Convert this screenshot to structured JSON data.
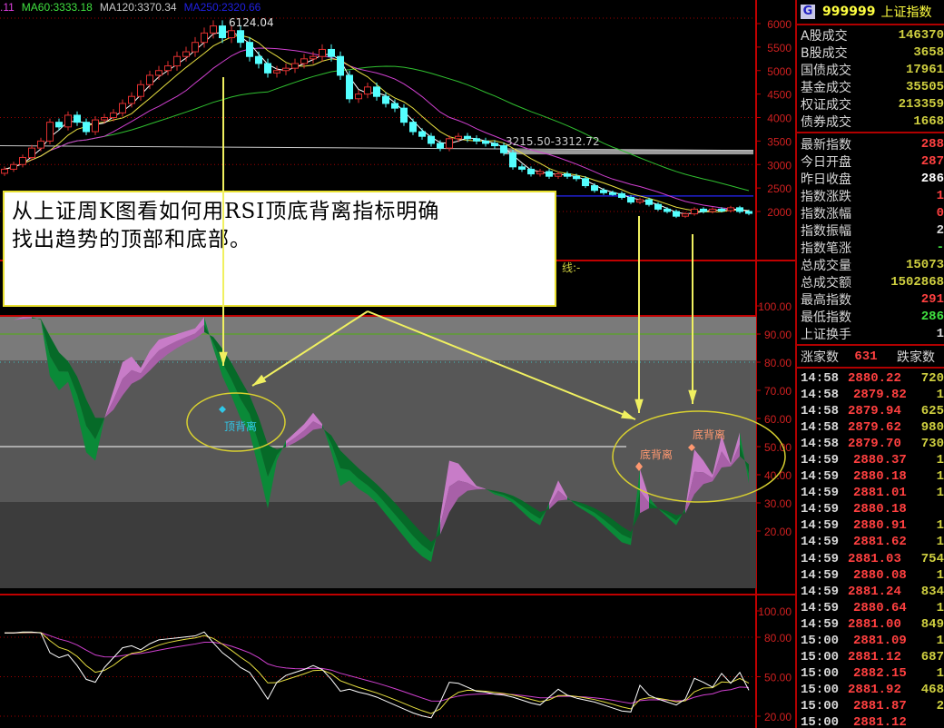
{
  "legend": {
    "items": [
      {
        "text": ".11",
        "color": "#e040e0"
      },
      {
        "text": "MA60:3333.18",
        "color": "#40e040"
      },
      {
        "text": "MA120:3370.34",
        "color": "#c8c8c8"
      },
      {
        "text": "MA250:2320.66",
        "color": "#2020e0"
      }
    ]
  },
  "annotations": {
    "peak_label": "6124.04",
    "range_label": "3215.50-3312.72",
    "indicator_label": "线:-",
    "top_divergence": "顶背离",
    "bottom_divergence_1": "底背离",
    "bottom_divergence_2": "底背离",
    "note_line1": "从上证周K图看如何用RSI顶底背离指标明确",
    "note_line2": "找出趋势的顶部和底部。"
  },
  "colors": {
    "up": "#e03030",
    "down": "#54ffff",
    "axis": "#c00000",
    "accent": "#ffff40",
    "pink": "#c87cc8",
    "green": "#0a8a38"
  },
  "chart_data": [
    {
      "type": "candlestick",
      "title": "",
      "price_axis": {
        "ticks": [
          "6000",
          "5500",
          "5000",
          "4500",
          "4000",
          "3500",
          "3000",
          "2500",
          "2000"
        ],
        "range": [
          1850,
          6200
        ]
      },
      "closes": [
        2900,
        3000,
        3150,
        3350,
        3500,
        3900,
        3800,
        4050,
        3900,
        3700,
        3950,
        4000,
        4100,
        4300,
        4450,
        4700,
        4900,
        5000,
        5100,
        5300,
        5400,
        5600,
        5800,
        5950,
        5700,
        5850,
        5600,
        5300,
        5150,
        4950,
        5000,
        5050,
        5150,
        5250,
        5300,
        5450,
        5300,
        4900,
        4400,
        4500,
        4650,
        4450,
        4300,
        4200,
        3900,
        3700,
        3600,
        3450,
        3350,
        3550,
        3600,
        3550,
        3500,
        3450,
        3400,
        3250,
        2950,
        2900,
        2800,
        2850,
        2750,
        2800,
        2750,
        2700,
        2550,
        2450,
        2400,
        2380,
        2300,
        2200,
        2250,
        2150,
        2050,
        2000,
        1900,
        1950,
        2050,
        2000,
        2050,
        2020,
        2080,
        2000,
        1960
      ],
      "peak": 6124.04,
      "range_band": [
        3215.5,
        3312.72
      ]
    },
    {
      "type": "area",
      "indicator": "RSI",
      "axis": {
        "ticks": [
          "100.00",
          "90.00",
          "80.00",
          "70.00",
          "60.00",
          "50.00",
          "40.00",
          "30.00",
          "20.00"
        ],
        "range": [
          0,
          100
        ]
      },
      "rsi": [
        95,
        95,
        96,
        96,
        95,
        75,
        70,
        73,
        62,
        48,
        45,
        60,
        70,
        80,
        82,
        78,
        84,
        88,
        89,
        90,
        91,
        92,
        96,
        85,
        75,
        68,
        60,
        55,
        42,
        28,
        45,
        52,
        55,
        58,
        62,
        58,
        48,
        36,
        38,
        35,
        33,
        30,
        26,
        22,
        18,
        14,
        11,
        9,
        25,
        45,
        44,
        40,
        36,
        35,
        33,
        32,
        30,
        27,
        24,
        22,
        30,
        38,
        32,
        29,
        27,
        25,
        22,
        19,
        16,
        15,
        42,
        32,
        28,
        25,
        22,
        28,
        49,
        45,
        40,
        54,
        44,
        55,
        37
      ]
    },
    {
      "type": "line",
      "axis": {
        "ticks": [
          "100.00",
          "80.00",
          "50.00",
          "20.00"
        ],
        "range": [
          10,
          100
        ]
      }
    }
  ],
  "info": {
    "code": "999999",
    "name": "上证指数",
    "badge": "G",
    "volume_rows": [
      {
        "label": "A股成交",
        "value": "146370"
      },
      {
        "label": "B股成交",
        "value": "3658"
      },
      {
        "label": "国债成交",
        "value": "17961"
      },
      {
        "label": "基金成交",
        "value": "35505"
      },
      {
        "label": "权证成交",
        "value": "213359"
      },
      {
        "label": "债券成交",
        "value": "1668"
      }
    ],
    "index_rows": [
      {
        "label": "最新指数",
        "value": "288",
        "color": "#ff4040"
      },
      {
        "label": "今日开盘",
        "value": "287",
        "color": "#ff4040"
      },
      {
        "label": "昨日收盘",
        "value": "286",
        "color": "#ffffff"
      },
      {
        "label": "指数涨跌",
        "value": "1",
        "color": "#ff4040"
      },
      {
        "label": "指数涨幅",
        "value": "0",
        "color": "#ff4040"
      },
      {
        "label": "指数振幅",
        "value": "2",
        "color": "#d8d8d8"
      },
      {
        "label": "指数笔涨",
        "value": "-",
        "color": "#40e040"
      },
      {
        "label": "总成交量",
        "value": "15073",
        "color": "#d0d040"
      },
      {
        "label": "总成交额",
        "value": "1502868",
        "color": "#d0d040"
      },
      {
        "label": "最高指数",
        "value": "291",
        "color": "#ff4040"
      },
      {
        "label": "最低指数",
        "value": "286",
        "color": "#40e040"
      },
      {
        "label": "上证换手",
        "value": "1",
        "color": "#d8d8d8"
      }
    ],
    "advance_label": "涨家数",
    "advance_count": "631",
    "decline_label": "跌家数",
    "trades": [
      {
        "time": "14:58",
        "price": "2880.22",
        "vol": "720"
      },
      {
        "time": "14:58",
        "price": "2879.82",
        "vol": "1"
      },
      {
        "time": "14:58",
        "price": "2879.94",
        "vol": "625"
      },
      {
        "time": "14:58",
        "price": "2879.62",
        "vol": "980"
      },
      {
        "time": "14:58",
        "price": "2879.70",
        "vol": "730"
      },
      {
        "time": "14:59",
        "price": "2880.37",
        "vol": "1"
      },
      {
        "time": "14:59",
        "price": "2880.18",
        "vol": "1"
      },
      {
        "time": "14:59",
        "price": "2881.01",
        "vol": "1"
      },
      {
        "time": "14:59",
        "price": "2880.18",
        "vol": ""
      },
      {
        "time": "14:59",
        "price": "2880.91",
        "vol": "1"
      },
      {
        "time": "14:59",
        "price": "2881.62",
        "vol": "1"
      },
      {
        "time": "14:59",
        "price": "2881.03",
        "vol": "754"
      },
      {
        "time": "14:59",
        "price": "2880.08",
        "vol": "1"
      },
      {
        "time": "14:59",
        "price": "2881.24",
        "vol": "834"
      },
      {
        "time": "14:59",
        "price": "2880.64",
        "vol": "1"
      },
      {
        "time": "14:59",
        "price": "2881.00",
        "vol": "849"
      },
      {
        "time": "15:00",
        "price": "2881.09",
        "vol": "1"
      },
      {
        "time": "15:00",
        "price": "2881.12",
        "vol": "687"
      },
      {
        "time": "15:00",
        "price": "2882.15",
        "vol": "1"
      },
      {
        "time": "15:00",
        "price": "2881.92",
        "vol": "468"
      },
      {
        "time": "15:00",
        "price": "2881.87",
        "vol": "2"
      },
      {
        "time": "15:00",
        "price": "2881.12",
        "vol": ""
      }
    ]
  }
}
